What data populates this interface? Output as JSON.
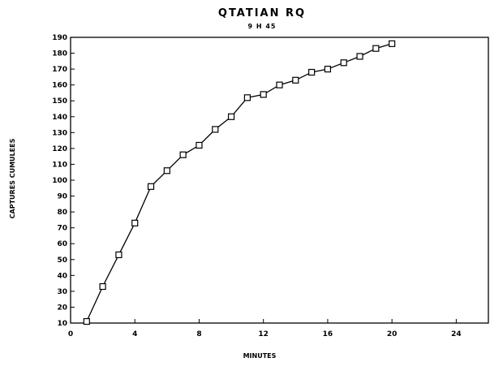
{
  "chart_data": {
    "type": "line",
    "title": "QTATIAN RQ",
    "subtitle": "9 H 45",
    "xlabel": "MINUTES",
    "ylabel": "CAPTURES CUMULEES",
    "xlim": [
      0,
      26
    ],
    "ylim": [
      10,
      190
    ],
    "xticks": [
      0,
      4,
      8,
      12,
      16,
      20,
      24
    ],
    "yticks": [
      10,
      20,
      30,
      40,
      50,
      60,
      70,
      80,
      90,
      100,
      110,
      120,
      130,
      140,
      150,
      160,
      170,
      180,
      190
    ],
    "grid": false,
    "marker": "square",
    "series": [
      {
        "x": [
          1,
          2,
          3,
          4,
          5,
          6,
          7,
          8,
          9,
          10,
          11,
          12,
          13,
          14,
          15,
          16,
          17,
          18,
          19,
          20
        ],
        "values": [
          11,
          33,
          53,
          73,
          96,
          106,
          116,
          122,
          132,
          140,
          152,
          154,
          160,
          163,
          168,
          170,
          174,
          178,
          183,
          186
        ]
      }
    ]
  }
}
